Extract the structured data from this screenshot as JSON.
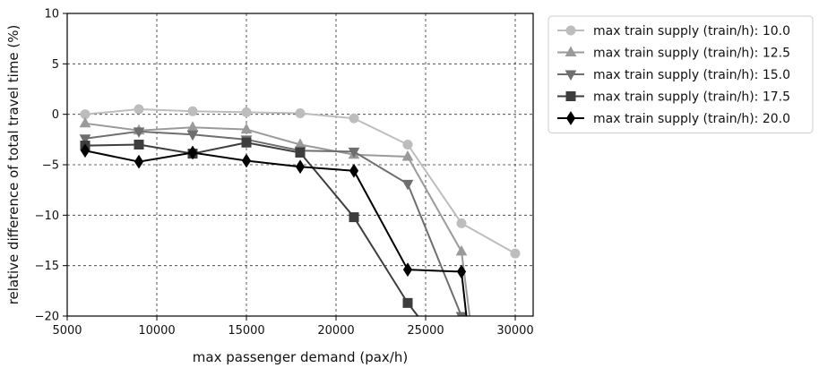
{
  "chart_data": {
    "type": "line",
    "title": "",
    "xlabel": "max passenger demand (pax/h)",
    "ylabel": "relative difference of total travel time (%)",
    "xlim": [
      5000,
      31000
    ],
    "ylim": [
      -20,
      10
    ],
    "x_ticks": [
      5000,
      10000,
      15000,
      20000,
      25000,
      30000
    ],
    "y_ticks": [
      -20,
      -15,
      -10,
      -5,
      0,
      5,
      10
    ],
    "grid": true,
    "grid_style": "dashed",
    "legend_position": "outside-top-right",
    "series": [
      {
        "name": "max train supply (train/h): 10.0",
        "color": "#bdbdbd",
        "marker": "circle",
        "x": [
          6000,
          9000,
          12000,
          15000,
          18000,
          21000,
          24000,
          27000,
          30000
        ],
        "y": [
          0.0,
          0.5,
          0.3,
          0.2,
          0.1,
          -0.4,
          -3.0,
          -10.8,
          -13.8
        ]
      },
      {
        "name": "max train supply (train/h): 12.5",
        "color": "#9a9a9a",
        "marker": "triangle-up",
        "x": [
          6000,
          9000,
          12000,
          15000,
          18000,
          21000,
          24000,
          27000,
          27600
        ],
        "y": [
          -0.9,
          -1.6,
          -1.3,
          -1.5,
          -3.0,
          -4.0,
          -4.2,
          -13.6,
          -22.0
        ]
      },
      {
        "name": "max train supply (train/h): 15.0",
        "color": "#6e6e6e",
        "marker": "triangle-down",
        "x": [
          6000,
          9000,
          12000,
          15000,
          18000,
          21000,
          24000,
          27000,
          27500
        ],
        "y": [
          -2.4,
          -1.7,
          -2.0,
          -2.5,
          -3.6,
          -3.7,
          -6.9,
          -20.0,
          -22.0
        ]
      },
      {
        "name": "max train supply (train/h): 17.5",
        "color": "#3d3d3d",
        "marker": "square",
        "x": [
          6000,
          9000,
          12000,
          15000,
          18000,
          21000,
          24000,
          25000
        ],
        "y": [
          -3.1,
          -3.0,
          -3.9,
          -2.8,
          -3.8,
          -10.2,
          -18.7,
          -21.0
        ]
      },
      {
        "name": "max train supply (train/h): 20.0",
        "color": "#000000",
        "marker": "diamond",
        "x": [
          6000,
          9000,
          12000,
          15000,
          18000,
          21000,
          24000,
          27000,
          27400
        ],
        "y": [
          -3.6,
          -4.7,
          -3.8,
          -4.6,
          -5.2,
          -5.6,
          -15.4,
          -15.6,
          -22.0
        ]
      }
    ]
  }
}
